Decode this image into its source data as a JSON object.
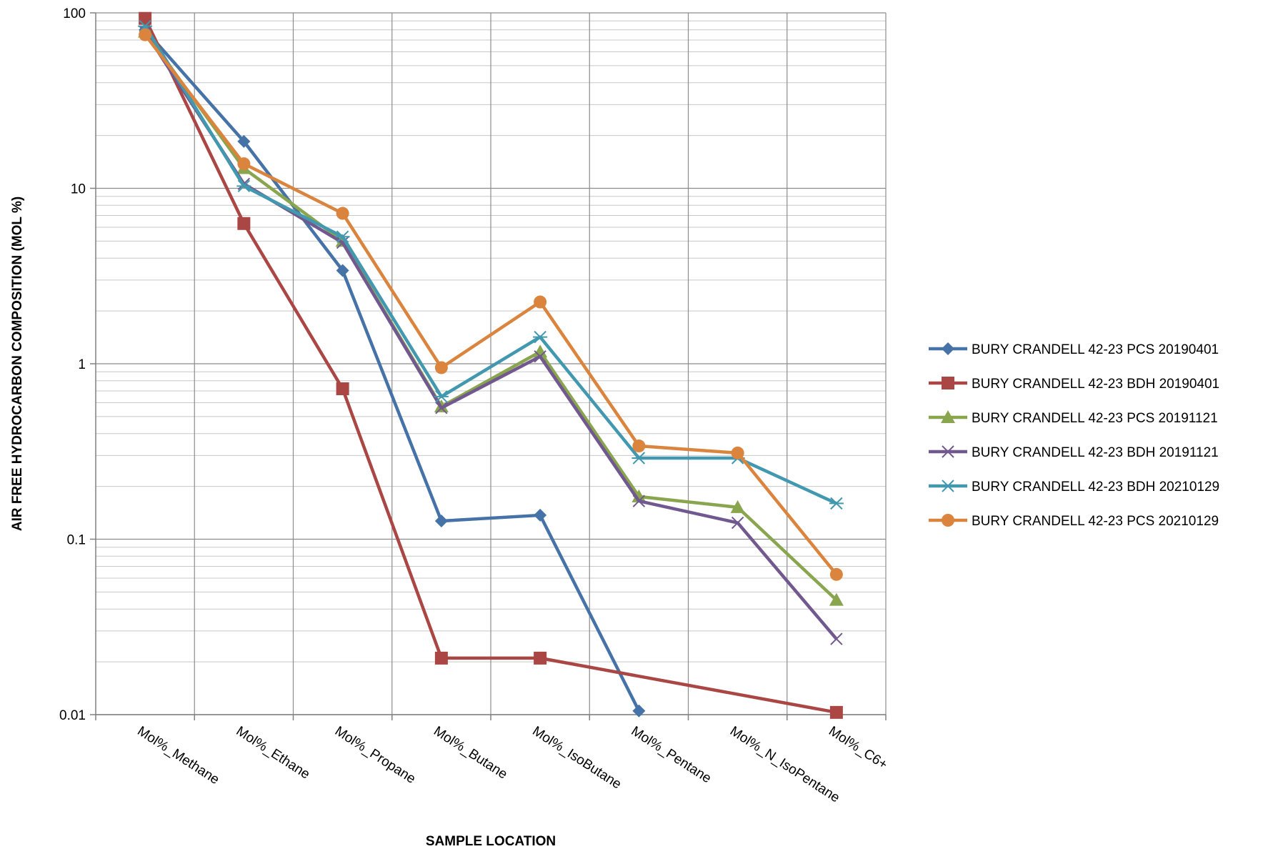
{
  "chart_data": {
    "type": "line",
    "categories": [
      "Mol%_Methane",
      "Mol%_Ethane",
      "Mol%_Propane",
      "Mol%_Butane",
      "Mol%_IsoButane",
      "Mol%_Pentane",
      "Mol%_N_IsoPentane",
      "Mol%_C6+"
    ],
    "series": [
      {
        "name": "BURY CRANDELL 42-23 PCS 20190401",
        "color": "#4572A7",
        "marker": "diamond",
        "values": [
          80,
          18.5,
          3.4,
          0.127,
          0.137,
          0.0105,
          null,
          null
        ]
      },
      {
        "name": "BURY CRANDELL 42-23 BDH 20190401",
        "color": "#AA4643",
        "marker": "square",
        "values": [
          93,
          6.3,
          0.72,
          0.021,
          0.021,
          null,
          null,
          0.0103
        ]
      },
      {
        "name": "BURY CRANDELL 42-23 PCS 20191121",
        "color": "#89A54E",
        "marker": "triangle",
        "values": [
          78,
          13,
          5.0,
          0.57,
          1.17,
          0.175,
          0.152,
          0.045
        ]
      },
      {
        "name": "BURY CRANDELL 42-23 BDH 20191121",
        "color": "#71588F",
        "marker": "x",
        "values": [
          78,
          10.6,
          4.9,
          0.56,
          1.1,
          0.165,
          0.124,
          0.027
        ]
      },
      {
        "name": "BURY CRANDELL 42-23 BDH 20210129",
        "color": "#4198AF",
        "marker": "star",
        "values": [
          84,
          10.3,
          5.3,
          0.65,
          1.42,
          0.29,
          0.29,
          0.16
        ]
      },
      {
        "name": "BURY CRANDELL 42-23 PCS 20210129",
        "color": "#DB843D",
        "marker": "circle",
        "values": [
          75,
          13.8,
          7.2,
          0.95,
          2.25,
          0.34,
          0.31,
          0.063
        ]
      }
    ],
    "xlabel": "SAMPLE LOCATION",
    "ylabel": "AIR FREE HYDROCARBON COMPOSITION (MOL %)",
    "yscale": "log",
    "ylim": [
      0.01,
      100
    ],
    "yticks": [
      "0.01",
      "0.1",
      "1",
      "10",
      "100"
    ],
    "grid": true,
    "legend_position": "right"
  }
}
